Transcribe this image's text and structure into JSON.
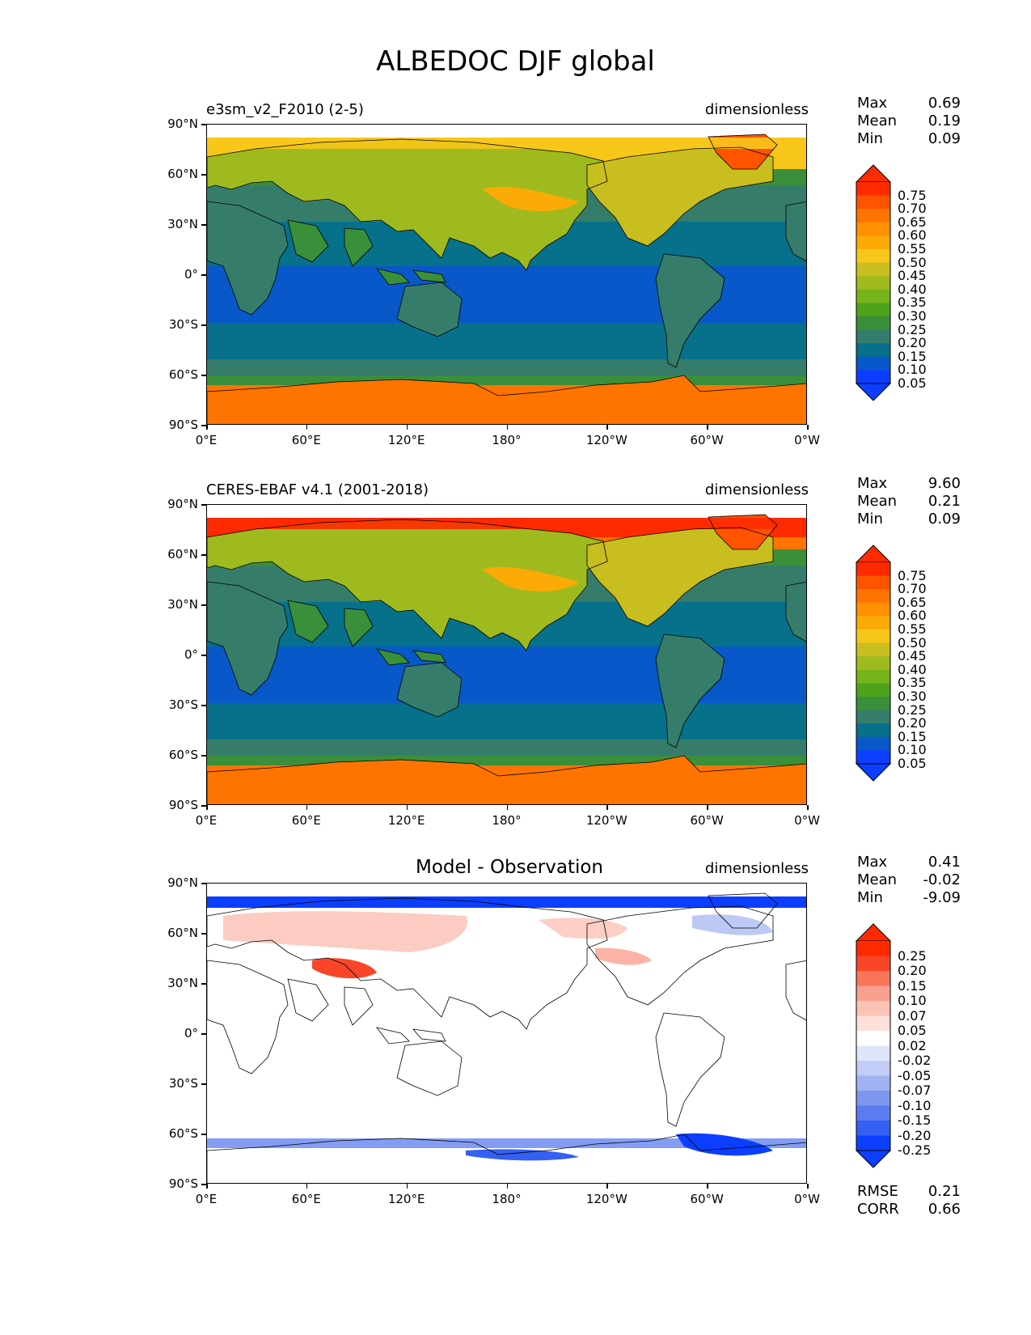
{
  "title": "ALBEDOC DJF global",
  "x_ticks": [
    "0°E",
    "60°E",
    "120°E",
    "180°",
    "120°W",
    "60°W",
    "0°W"
  ],
  "y_ticks": [
    "90°N",
    "60°N",
    "30°N",
    "0°",
    "30°S",
    "60°S",
    "90°S"
  ],
  "panels": [
    {
      "title_left": "e3sm_v2_F2010 (2-5)",
      "title_center": "",
      "units": "dimensionless",
      "stats": [
        [
          "Max",
          "0.69"
        ],
        [
          "Mean",
          "0.19"
        ],
        [
          "Min",
          "0.09"
        ]
      ],
      "footer_stats": [],
      "colorbar": {
        "labels": [
          "0.75",
          "0.70",
          "0.65",
          "0.60",
          "0.55",
          "0.50",
          "0.45",
          "0.40",
          "0.35",
          "0.30",
          "0.25",
          "0.20",
          "0.15",
          "0.10",
          "0.05"
        ],
        "colors": [
          "#ff2a00",
          "#ff5300",
          "#ff7400",
          "#ff9100",
          "#fbaa06",
          "#f7c61a",
          "#c9be1f",
          "#9fba1e",
          "#76b41b",
          "#4fa31a",
          "#3a8f3a",
          "#357d6a",
          "#07708b",
          "#0858c9",
          "#0b3eff"
        ],
        "low_color": "#0b3eff",
        "high_color": "#ff2a00"
      }
    },
    {
      "title_left": "CERES-EBAF v4.1 (2001-2018)",
      "title_center": "",
      "units": "dimensionless",
      "stats": [
        [
          "Max",
          "9.60"
        ],
        [
          "Mean",
          "0.21"
        ],
        [
          "Min",
          "0.09"
        ]
      ],
      "footer_stats": [],
      "colorbar": {
        "labels": [
          "0.75",
          "0.70",
          "0.65",
          "0.60",
          "0.55",
          "0.50",
          "0.45",
          "0.40",
          "0.35",
          "0.30",
          "0.25",
          "0.20",
          "0.15",
          "0.10",
          "0.05"
        ],
        "colors": [
          "#ff2a00",
          "#ff5300",
          "#ff7400",
          "#ff9100",
          "#fbaa06",
          "#f7c61a",
          "#c9be1f",
          "#9fba1e",
          "#76b41b",
          "#4fa31a",
          "#3a8f3a",
          "#357d6a",
          "#07708b",
          "#0858c9",
          "#0b3eff"
        ],
        "low_color": "#0b3eff",
        "high_color": "#ff2a00"
      }
    },
    {
      "title_left": "",
      "title_center": "Model - Observation",
      "units": "dimensionless",
      "stats": [
        [
          "Max",
          "0.41"
        ],
        [
          "Mean",
          "-0.02"
        ],
        [
          "Min",
          "-9.09"
        ]
      ],
      "footer_stats": [
        [
          "RMSE",
          "0.21"
        ],
        [
          "CORR",
          "0.66"
        ]
      ],
      "colorbar": {
        "labels": [
          "0.25",
          "0.20",
          "0.15",
          "0.10",
          "0.07",
          "0.05",
          "0.02",
          "-0.02",
          "-0.05",
          "-0.07",
          "-0.10",
          "-0.15",
          "-0.20",
          "-0.25"
        ],
        "colors": [
          "#ff2a00",
          "#f94628",
          "#f8755a",
          "#f9a090",
          "#fbc2b6",
          "#fde0d9",
          "#ffffff",
          "#dfe6fb",
          "#c1cdf6",
          "#a0b2f1",
          "#7d97ee",
          "#5a7cf0",
          "#3560f4",
          "#0b3eff"
        ],
        "low_color": "#0b3eff",
        "high_color": "#ff2a00"
      }
    }
  ]
}
